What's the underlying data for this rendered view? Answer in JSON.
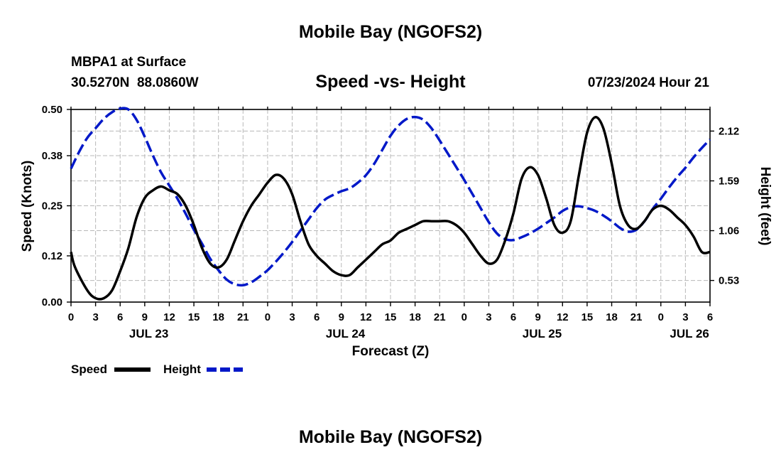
{
  "page": {
    "title": "Mobile Bay (NGOFS2)",
    "station": "MBPA1 at Surface",
    "coords": "30.5270N  88.0860W",
    "subtitle": "Speed -vs- Height",
    "datetime": "07/23/2024 Hour 21",
    "footer_title": "Mobile Bay (NGOFS2)"
  },
  "chart_data": {
    "type": "line",
    "title": "Speed -vs- Height",
    "xlabel": "Forecast (Z)",
    "ylabel": "Speed (Knots)",
    "y2label": "Height (feet)",
    "x_unit": "hours since Jul 23 00Z",
    "x_ticks": [
      0,
      3,
      6,
      9,
      12,
      15,
      18,
      21,
      24,
      27,
      30,
      33,
      36,
      39,
      42,
      45,
      48,
      51,
      54,
      57,
      60,
      63,
      66,
      69,
      72,
      75,
      78
    ],
    "x_tick_labels": [
      "0",
      "3",
      "6",
      "9",
      "12",
      "15",
      "18",
      "21",
      "0",
      "3",
      "6",
      "9",
      "12",
      "15",
      "18",
      "21",
      "0",
      "3",
      "6",
      "9",
      "12",
      "15",
      "18",
      "21",
      "0",
      "3",
      "6"
    ],
    "date_labels": [
      {
        "x": 9.5,
        "label": "JUL 23"
      },
      {
        "x": 33.5,
        "label": "JUL 24"
      },
      {
        "x": 57.5,
        "label": "JUL 25"
      },
      {
        "x": 75.5,
        "label": "JUL 26"
      }
    ],
    "xlim": [
      0,
      78
    ],
    "ylim": [
      0,
      0.5
    ],
    "y_ticks": [
      0.0,
      0.12,
      0.25,
      0.38,
      0.5
    ],
    "y_tick_labels": [
      "0.00",
      "0.12",
      "0.25",
      "0.38",
      "0.50"
    ],
    "y2lim": [
      0.3,
      2.35
    ],
    "y2_ticks": [
      0.53,
      1.06,
      1.59,
      2.12
    ],
    "y2_tick_labels": [
      "0.53",
      "1.06",
      "1.59",
      "2.12"
    ],
    "grid": true,
    "legend_placement": "bottom-left",
    "series": [
      {
        "name": "Speed",
        "axis": "left",
        "color": "#000000",
        "dash": "solid",
        "points": [
          [
            0,
            0.13
          ],
          [
            0.5,
            0.09
          ],
          [
            2,
            0.03
          ],
          [
            3,
            0.01
          ],
          [
            4,
            0.01
          ],
          [
            5,
            0.03
          ],
          [
            6,
            0.08
          ],
          [
            7,
            0.14
          ],
          [
            8,
            0.22
          ],
          [
            9,
            0.27
          ],
          [
            10,
            0.29
          ],
          [
            11,
            0.3
          ],
          [
            12,
            0.29
          ],
          [
            13,
            0.28
          ],
          [
            14,
            0.25
          ],
          [
            15,
            0.2
          ],
          [
            16,
            0.14
          ],
          [
            17,
            0.1
          ],
          [
            18,
            0.09
          ],
          [
            19,
            0.11
          ],
          [
            20,
            0.16
          ],
          [
            21,
            0.21
          ],
          [
            22,
            0.25
          ],
          [
            23,
            0.28
          ],
          [
            24,
            0.31
          ],
          [
            25,
            0.33
          ],
          [
            26,
            0.32
          ],
          [
            27,
            0.28
          ],
          [
            28,
            0.21
          ],
          [
            29,
            0.15
          ],
          [
            30,
            0.12
          ],
          [
            31,
            0.1
          ],
          [
            32,
            0.08
          ],
          [
            33,
            0.07
          ],
          [
            34,
            0.07
          ],
          [
            35,
            0.09
          ],
          [
            36,
            0.11
          ],
          [
            37,
            0.13
          ],
          [
            38,
            0.15
          ],
          [
            39,
            0.16
          ],
          [
            40,
            0.18
          ],
          [
            41,
            0.19
          ],
          [
            42,
            0.2
          ],
          [
            43,
            0.21
          ],
          [
            44,
            0.21
          ],
          [
            45,
            0.21
          ],
          [
            46,
            0.21
          ],
          [
            47,
            0.2
          ],
          [
            48,
            0.18
          ],
          [
            49,
            0.15
          ],
          [
            50,
            0.12
          ],
          [
            51,
            0.1
          ],
          [
            52,
            0.11
          ],
          [
            53,
            0.16
          ],
          [
            54,
            0.23
          ],
          [
            55,
            0.32
          ],
          [
            56,
            0.35
          ],
          [
            57,
            0.33
          ],
          [
            58,
            0.27
          ],
          [
            59,
            0.2
          ],
          [
            60,
            0.18
          ],
          [
            61,
            0.21
          ],
          [
            62,
            0.33
          ],
          [
            63,
            0.44
          ],
          [
            64,
            0.48
          ],
          [
            65,
            0.45
          ],
          [
            66,
            0.36
          ],
          [
            67,
            0.25
          ],
          [
            68,
            0.2
          ],
          [
            69,
            0.19
          ],
          [
            70,
            0.21
          ],
          [
            71,
            0.24
          ],
          [
            72,
            0.25
          ],
          [
            73,
            0.24
          ],
          [
            74,
            0.22
          ],
          [
            75,
            0.2
          ],
          [
            76,
            0.17
          ],
          [
            77,
            0.13
          ],
          [
            78,
            0.13
          ]
        ]
      },
      {
        "name": "Height",
        "axis": "right",
        "color": "#0018c8",
        "dash": "dashed",
        "points": [
          [
            0,
            1.72
          ],
          [
            1,
            1.9
          ],
          [
            2,
            2.05
          ],
          [
            3,
            2.15
          ],
          [
            4,
            2.25
          ],
          [
            5,
            2.32
          ],
          [
            6,
            2.36
          ],
          [
            7,
            2.35
          ],
          [
            8,
            2.24
          ],
          [
            9,
            2.06
          ],
          [
            10,
            1.86
          ],
          [
            11,
            1.68
          ],
          [
            12,
            1.54
          ],
          [
            13,
            1.4
          ],
          [
            14,
            1.24
          ],
          [
            15,
            1.07
          ],
          [
            16,
            0.92
          ],
          [
            17,
            0.76
          ],
          [
            18,
            0.64
          ],
          [
            19,
            0.54
          ],
          [
            20,
            0.49
          ],
          [
            21,
            0.48
          ],
          [
            22,
            0.51
          ],
          [
            23,
            0.57
          ],
          [
            24,
            0.64
          ],
          [
            25,
            0.73
          ],
          [
            26,
            0.83
          ],
          [
            27,
            0.94
          ],
          [
            28,
            1.06
          ],
          [
            29,
            1.18
          ],
          [
            30,
            1.3
          ],
          [
            31,
            1.39
          ],
          [
            32,
            1.44
          ],
          [
            33,
            1.48
          ],
          [
            34,
            1.51
          ],
          [
            35,
            1.57
          ],
          [
            36,
            1.65
          ],
          [
            37,
            1.77
          ],
          [
            38,
            1.92
          ],
          [
            39,
            2.07
          ],
          [
            40,
            2.18
          ],
          [
            41,
            2.25
          ],
          [
            42,
            2.27
          ],
          [
            43,
            2.24
          ],
          [
            44,
            2.15
          ],
          [
            45,
            2.02
          ],
          [
            46,
            1.88
          ],
          [
            47,
            1.74
          ],
          [
            48,
            1.6
          ],
          [
            49,
            1.45
          ],
          [
            50,
            1.3
          ],
          [
            51,
            1.15
          ],
          [
            52,
            1.03
          ],
          [
            53,
            0.97
          ],
          [
            54,
            0.96
          ],
          [
            55,
            0.99
          ],
          [
            56,
            1.03
          ],
          [
            57,
            1.08
          ],
          [
            58,
            1.14
          ],
          [
            59,
            1.2
          ],
          [
            60,
            1.27
          ],
          [
            61,
            1.31
          ],
          [
            62,
            1.32
          ],
          [
            63,
            1.3
          ],
          [
            64,
            1.27
          ],
          [
            65,
            1.22
          ],
          [
            66,
            1.16
          ],
          [
            67,
            1.09
          ],
          [
            68,
            1.05
          ],
          [
            69,
            1.07
          ],
          [
            70,
            1.16
          ],
          [
            71,
            1.29
          ],
          [
            72,
            1.4
          ],
          [
            73,
            1.52
          ],
          [
            74,
            1.63
          ],
          [
            75,
            1.73
          ],
          [
            76,
            1.84
          ],
          [
            77,
            1.94
          ],
          [
            78,
            2.03
          ]
        ]
      }
    ]
  }
}
